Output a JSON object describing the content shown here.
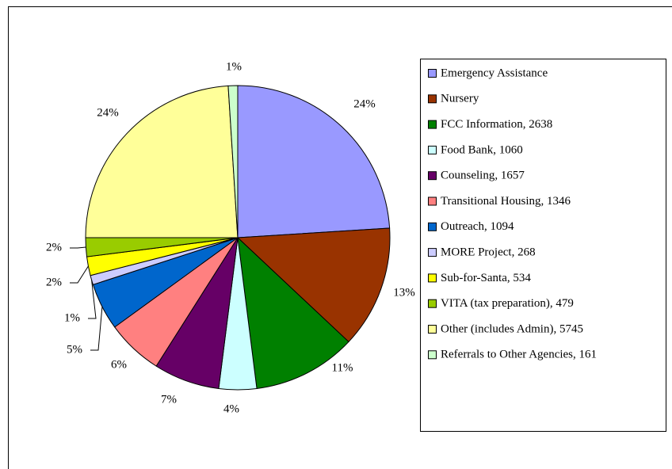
{
  "chart_data": {
    "type": "pie",
    "categories": [
      "Emergency Assistance",
      "Nursery",
      "FCC Information, 2638",
      "Food Bank, 1060",
      "Counseling, 1657",
      "Transitional Housing, 1346",
      "Outreach, 1094",
      "MORE Project, 268",
      "Sub-for-Santa, 534",
      "VITA (tax preparation), 479",
      "Other (includes Admin), 5745",
      "Referrals to Other Agencies, 161"
    ],
    "values": [
      24,
      13,
      11,
      4,
      7,
      6,
      5,
      1,
      2,
      2,
      24,
      1
    ],
    "value_labels": [
      "24%",
      "13%",
      "11%",
      "4%",
      "7%",
      "6%",
      "5%",
      "1%",
      "2%",
      "2%",
      "24%",
      "1%"
    ],
    "colors": [
      "#9999ff",
      "#993300",
      "#008000",
      "#ccffff",
      "#660066",
      "#ff8080",
      "#0066cc",
      "#ccccff",
      "#ffff00",
      "#99cc00",
      "#ffff99",
      "#ccffcc"
    ],
    "legend": "right"
  }
}
